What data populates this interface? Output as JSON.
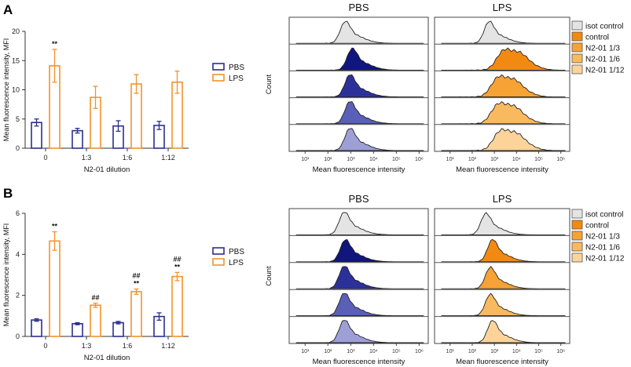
{
  "colors": {
    "pbs_line": "#2b2f8f",
    "lps_line": "#f5922b",
    "axis": "#333333",
    "pbs_hist": [
      "#11157e",
      "#2c319a",
      "#5a5fb8",
      "#9d9fd6"
    ],
    "lps_hist": [
      "#f28a12",
      "#f6a235",
      "#f9b95e",
      "#fcd49a"
    ],
    "isot_fill": "#e4e4e4"
  },
  "chart_data": [
    {
      "type": "bar",
      "panel": "A",
      "categories": [
        "0",
        "1:3",
        "1:6",
        "1:12"
      ],
      "series": [
        {
          "name": "PBS",
          "values": [
            4.4,
            3.0,
            3.8,
            3.9
          ],
          "errors": [
            0.6,
            0.4,
            0.9,
            0.7
          ]
        },
        {
          "name": "LPS",
          "values": [
            14.1,
            8.7,
            11.0,
            11.3
          ],
          "errors": [
            2.8,
            1.9,
            1.6,
            1.9
          ]
        }
      ],
      "ylabel": "Mean fluorescence intensity, MFI",
      "xlabel": "N2-01 dilution",
      "ylim": [
        0,
        20
      ],
      "yticks": [
        "0",
        "5",
        "10",
        "15",
        "20"
      ],
      "annotations": [
        {
          "category": "0",
          "series": "LPS",
          "lines": [
            "**"
          ]
        }
      ],
      "legend": {
        "position": "right",
        "entries": [
          "PBS",
          "LPS"
        ]
      }
    },
    {
      "type": "bar",
      "panel": "B",
      "categories": [
        "0",
        "1:3",
        "1:6",
        "1:12"
      ],
      "series": [
        {
          "name": "PBS",
          "values": [
            0.8,
            0.62,
            0.67,
            0.97
          ],
          "errors": [
            0.06,
            0.05,
            0.06,
            0.18
          ]
        },
        {
          "name": "LPS",
          "values": [
            4.65,
            1.52,
            2.18,
            2.92
          ],
          "errors": [
            0.45,
            0.1,
            0.13,
            0.2
          ]
        }
      ],
      "ylabel": "Mean fluorescence intensity, MFI",
      "xlabel": "N2-01 dilution",
      "ylim": [
        0,
        6
      ],
      "yticks": [
        "0",
        "2",
        "4",
        "6"
      ],
      "annotations": [
        {
          "category": "0",
          "series": "LPS",
          "lines": [
            "**"
          ]
        },
        {
          "category": "1:3",
          "series": "LPS",
          "lines": [
            "##"
          ]
        },
        {
          "category": "1:6",
          "series": "LPS",
          "lines": [
            "##",
            "**"
          ]
        },
        {
          "category": "1:12",
          "series": "LPS",
          "lines": [
            "##",
            "**"
          ]
        }
      ],
      "legend": {
        "position": "right",
        "entries": [
          "PBS",
          "LPS"
        ]
      }
    },
    {
      "type": "histogram-overlay",
      "panel": "A",
      "titles": [
        "PBS",
        "LPS"
      ],
      "ylabel": "Count",
      "xlabel": "Mean fluorescence intensity",
      "x_ticks": [
        "10¹",
        "10²",
        "10³",
        "10⁴",
        "10⁵",
        "10⁶"
      ],
      "legend_entries": [
        "isot control",
        "control",
        "N2-01 1/3",
        "N2-01 1/6",
        "N2-01 1/12"
      ],
      "rows": [
        {
          "label": "isot control",
          "pbs_peak": 2.75,
          "lps_peak": 2.75
        },
        {
          "label": "control",
          "pbs_peak": 3.05,
          "lps_peak": 3.75
        },
        {
          "label": "N2-01 1/3",
          "pbs_peak": 2.95,
          "lps_peak": 3.5
        },
        {
          "label": "N2-01 1/6",
          "pbs_peak": 2.95,
          "lps_peak": 3.5
        },
        {
          "label": "N2-01 1/12",
          "pbs_peak": 2.95,
          "lps_peak": 3.6
        }
      ]
    },
    {
      "type": "histogram-overlay",
      "panel": "B",
      "titles": [
        "PBS",
        "LPS"
      ],
      "ylabel": "Count",
      "xlabel": "Mean fluorescence intensity",
      "x_ticks": [
        "10¹",
        "10²",
        "10³",
        "10⁴",
        "10⁵",
        "10⁶"
      ],
      "legend_entries": [
        "isot control",
        "control",
        "N2-01 1/3",
        "N2-01 1/6",
        "N2-01 1/12"
      ],
      "rows": [
        {
          "label": "isot control",
          "pbs_peak": 2.7,
          "lps_peak": 2.6
        },
        {
          "label": "control",
          "pbs_peak": 2.75,
          "lps_peak": 2.9
        },
        {
          "label": "N2-01 1/3",
          "pbs_peak": 2.7,
          "lps_peak": 2.8
        },
        {
          "label": "N2-01 1/6",
          "pbs_peak": 2.7,
          "lps_peak": 2.8
        },
        {
          "label": "N2-01 1/12",
          "pbs_peak": 2.7,
          "lps_peak": 2.9
        }
      ]
    }
  ],
  "panels": [
    {
      "label": "A"
    },
    {
      "label": "B"
    }
  ]
}
